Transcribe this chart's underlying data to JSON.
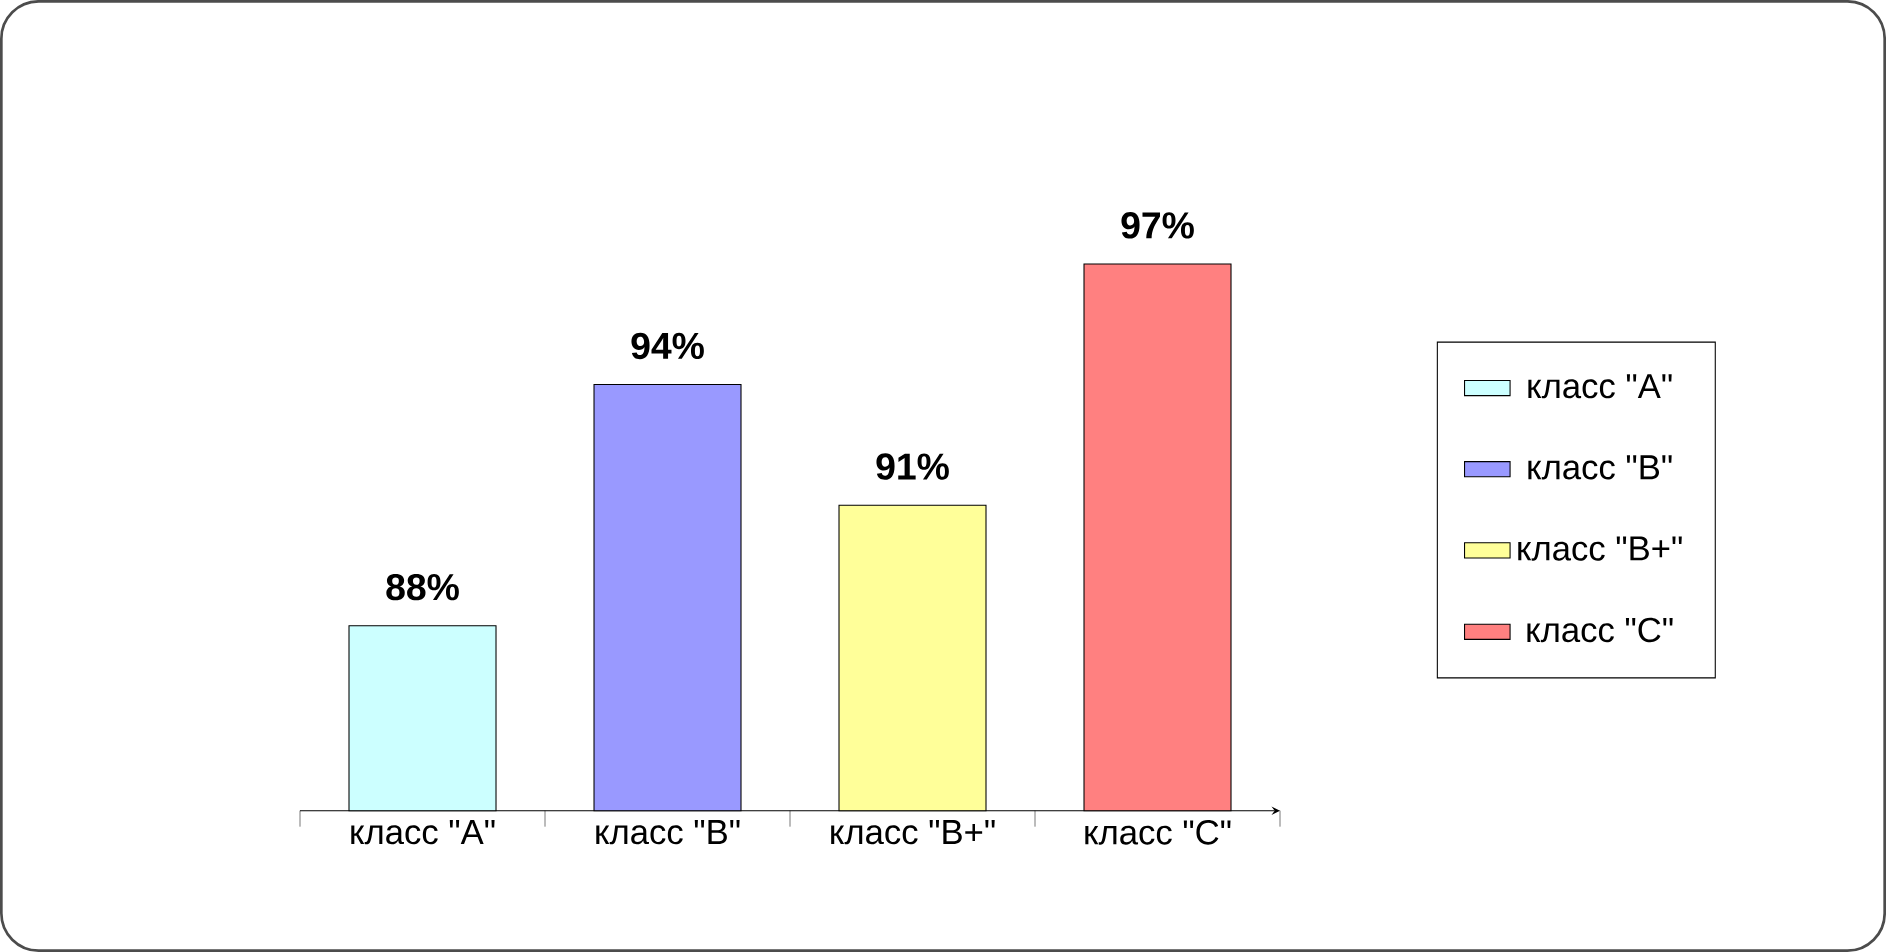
{
  "chart_data": {
    "type": "bar",
    "categories": [
      "класс \"A\"",
      "класс \"B\"",
      "класс \"B+\"",
      "класс \"C\""
    ],
    "series": [
      {
        "name": "класс \"A\"",
        "color": "#ccffff",
        "values": [
          88,
          null,
          null,
          null
        ],
        "value_labels": [
          "88%",
          null,
          null,
          null
        ]
      },
      {
        "name": "класс \"B\"",
        "color": "#9999ff",
        "values": [
          null,
          94,
          null,
          null
        ],
        "value_labels": [
          null,
          "94%",
          null,
          null
        ]
      },
      {
        "name": "класс \"B+\"",
        "color": "#ffff99",
        "values": [
          null,
          null,
          91,
          null
        ],
        "value_labels": [
          null,
          null,
          "91%",
          null
        ]
      },
      {
        "name": "класс \"C\"",
        "color": "#ff8080",
        "values": [
          null,
          null,
          null,
          97
        ],
        "value_labels": [
          null,
          null,
          null,
          "97%"
        ]
      }
    ],
    "ylim": [
      83.4,
      97
    ],
    "legend": "right"
  }
}
